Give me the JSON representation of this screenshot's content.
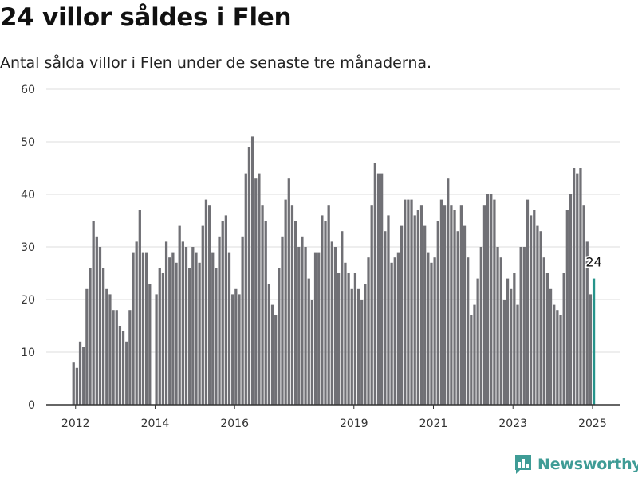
{
  "title": "24 villor såldes i Flen",
  "subtitle": "Antal sålda villor i Flen under de senaste tre månaderna.",
  "brand": {
    "name": "Newsworthy",
    "icon": "newsworthy-chart-icon",
    "color": "#3f9c96"
  },
  "colors": {
    "bar": "#707075",
    "highlight": "#26948b",
    "grid": "#dddddd",
    "axis": "#333333"
  },
  "chart_data": {
    "type": "bar",
    "ylim": [
      0,
      60
    ],
    "y_ticks": [
      0,
      10,
      20,
      30,
      40,
      50,
      60
    ],
    "x_ticks": [
      {
        "label": "2012",
        "date": "2012-01"
      },
      {
        "label": "2014",
        "date": "2014-01"
      },
      {
        "label": "2016",
        "date": "2016-01"
      },
      {
        "label": "2019",
        "date": "2019-01"
      },
      {
        "label": "2021",
        "date": "2021-01"
      },
      {
        "label": "2023",
        "date": "2023-01"
      },
      {
        "label": "2025",
        "date": "2025-01"
      }
    ],
    "start": "2011-12",
    "values": [
      8,
      7,
      12,
      11,
      22,
      26,
      35,
      32,
      30,
      26,
      22,
      21,
      18,
      18,
      15,
      14,
      12,
      18,
      29,
      31,
      37,
      29,
      29,
      23,
      0,
      21,
      26,
      25,
      31,
      28,
      29,
      27,
      34,
      31,
      30,
      26,
      30,
      29,
      27,
      34,
      39,
      38,
      29,
      26,
      32,
      35,
      36,
      29,
      21,
      22,
      21,
      32,
      44,
      49,
      51,
      43,
      44,
      38,
      35,
      23,
      19,
      17,
      26,
      32,
      39,
      43,
      38,
      35,
      30,
      32,
      30,
      24,
      20,
      29,
      29,
      36,
      35,
      38,
      31,
      30,
      25,
      33,
      27,
      25,
      22,
      25,
      22,
      20,
      23,
      28,
      38,
      46,
      44,
      44,
      33,
      36,
      27,
      28,
      29,
      34,
      39,
      39,
      39,
      36,
      37,
      38,
      34,
      29,
      27,
      28,
      35,
      39,
      38,
      43,
      38,
      37,
      33,
      38,
      34,
      28,
      17,
      19,
      24,
      30,
      38,
      40,
      40,
      39,
      30,
      28,
      20,
      24,
      22,
      25,
      19,
      30,
      30,
      39,
      36,
      37,
      34,
      33,
      28,
      25,
      22,
      19,
      18,
      17,
      25,
      37,
      40,
      45,
      44,
      45,
      38,
      31,
      21,
      24
    ],
    "highlight": {
      "last_label": "24"
    }
  }
}
